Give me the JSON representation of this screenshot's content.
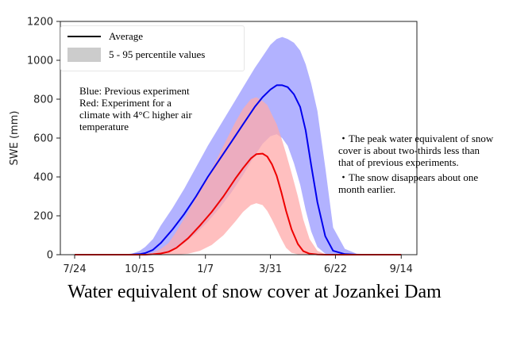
{
  "caption": "Water equivalent of snow cover at Jozankei Dam",
  "legend": {
    "items": [
      {
        "label": "Average",
        "kind": "line",
        "color": "#000000"
      },
      {
        "label": "5 - 95 percentile values",
        "kind": "band",
        "color": "#cccccc"
      }
    ]
  },
  "notes_left": [
    "Blue: Previous experiment",
    "Red: Experiment for a",
    "climate with 4°C higher air",
    "temperature"
  ],
  "notes_right": [
    "・The peak water equivalent of snow",
    "cover is about two-thirds less than",
    "that of previous experiments.",
    "・The snow disappears about one",
    "month earlier."
  ],
  "colors": {
    "previous_band": "#aaaaff",
    "previous_line": "#0000ee",
    "warm_band": "#ffaaaa",
    "warm_line": "#ee0000",
    "overlap_band": "#d57fbf"
  },
  "chart_data": {
    "type": "line",
    "title": "",
    "xlabel": "",
    "ylabel": "SWE (mm)",
    "ylim": [
      0,
      1200
    ],
    "yticks": [
      0,
      200,
      400,
      600,
      800,
      1000,
      1200
    ],
    "xticks": [
      "7/24",
      "10/15",
      "1/7",
      "3/31",
      "6/22",
      "9/14"
    ],
    "x_unit": "days since 7/24",
    "xtick_days": [
      0,
      83,
      167,
      250,
      333,
      417
    ],
    "grid": false,
    "legend_position": "top-left",
    "series": [
      {
        "name": "Previous experiment",
        "color": "#0000ee",
        "x": [
          0,
          70,
          83,
          90,
          100,
          110,
          125,
          140,
          155,
          170,
          185,
          200,
          215,
          230,
          240,
          250,
          258,
          265,
          272,
          280,
          288,
          295,
          302,
          310,
          320,
          330,
          345,
          360,
          390,
          417
        ],
        "mean": [
          0,
          0,
          3,
          8,
          25,
          60,
          130,
          210,
          300,
          400,
          490,
          580,
          670,
          760,
          810,
          850,
          872,
          872,
          862,
          825,
          760,
          640,
          460,
          270,
          95,
          20,
          3,
          0,
          0,
          0
        ],
        "p05": [
          0,
          0,
          0,
          0,
          0,
          5,
          20,
          60,
          110,
          170,
          240,
          320,
          410,
          510,
          570,
          610,
          620,
          600,
          560,
          470,
          360,
          230,
          120,
          40,
          5,
          0,
          0,
          0,
          0,
          0
        ],
        "p95": [
          0,
          0,
          20,
          40,
          80,
          150,
          240,
          340,
          450,
          560,
          660,
          760,
          860,
          960,
          1020,
          1080,
          1110,
          1120,
          1110,
          1090,
          1050,
          980,
          880,
          740,
          450,
          140,
          30,
          5,
          0,
          0
        ]
      },
      {
        "name": "Experiment for a climate with 4°C higher air temperature",
        "color": "#ee0000",
        "x": [
          0,
          90,
          100,
          110,
          120,
          130,
          145,
          160,
          175,
          190,
          205,
          215,
          225,
          232,
          240,
          246,
          252,
          258,
          264,
          270,
          277,
          285,
          292,
          300,
          310,
          320,
          340,
          370,
          417
        ],
        "mean": [
          0,
          0,
          2,
          6,
          15,
          35,
          85,
          150,
          220,
          300,
          390,
          445,
          495,
          517,
          520,
          505,
          465,
          405,
          320,
          225,
          130,
          55,
          18,
          5,
          1,
          0,
          0,
          0,
          0
        ],
        "p05": [
          0,
          0,
          0,
          0,
          0,
          0,
          5,
          20,
          50,
          100,
          170,
          220,
          255,
          265,
          255,
          225,
          180,
          130,
          80,
          35,
          10,
          2,
          0,
          0,
          0,
          0,
          0,
          0,
          0
        ],
        "p95": [
          0,
          0,
          10,
          30,
          60,
          120,
          220,
          330,
          440,
          560,
          680,
          750,
          800,
          810,
          790,
          770,
          720,
          670,
          600,
          520,
          420,
          300,
          180,
          80,
          20,
          3,
          0,
          0,
          0
        ]
      }
    ]
  }
}
